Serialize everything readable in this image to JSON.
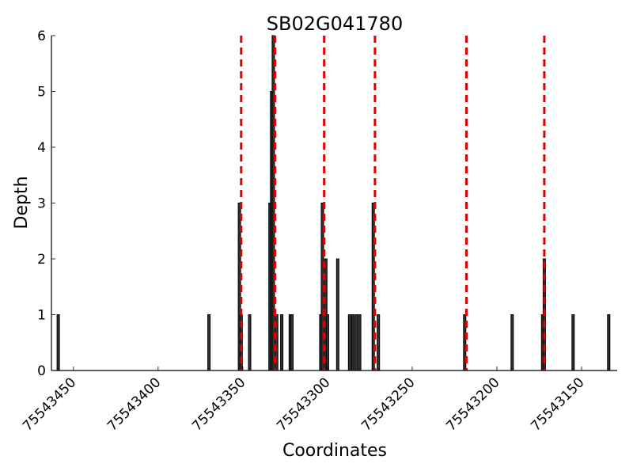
{
  "chart_data": {
    "type": "bar",
    "title": "SB02G041780",
    "xlabel": "Coordinates",
    "ylabel": "Depth",
    "xlim": [
      75543463,
      75543129
    ],
    "ylim": [
      0,
      6
    ],
    "x_axis_reversed": true,
    "xticks": [
      75543450,
      75543400,
      75543350,
      75543300,
      75543250,
      75543200,
      75543150
    ],
    "yticks": [
      0,
      1,
      2,
      3,
      4,
      5,
      6
    ],
    "bars": [
      {
        "x": 75543459,
        "depth": 1
      },
      {
        "x": 75543370,
        "depth": 1
      },
      {
        "x": 75543352,
        "depth": 3
      },
      {
        "x": 75543351,
        "depth": 1
      },
      {
        "x": 75543346,
        "depth": 1
      },
      {
        "x": 75543334,
        "depth": 3
      },
      {
        "x": 75543333,
        "depth": 5
      },
      {
        "x": 75543332,
        "depth": 6
      },
      {
        "x": 75543330,
        "depth": 1
      },
      {
        "x": 75543327,
        "depth": 1
      },
      {
        "x": 75543322,
        "depth": 1
      },
      {
        "x": 75543321,
        "depth": 1
      },
      {
        "x": 75543304,
        "depth": 1
      },
      {
        "x": 75543303,
        "depth": 3
      },
      {
        "x": 75543301,
        "depth": 2
      },
      {
        "x": 75543300,
        "depth": 1
      },
      {
        "x": 75543294,
        "depth": 2
      },
      {
        "x": 75543287,
        "depth": 1
      },
      {
        "x": 75543285,
        "depth": 1
      },
      {
        "x": 75543283,
        "depth": 1
      },
      {
        "x": 75543281,
        "depth": 1
      },
      {
        "x": 75543273,
        "depth": 3
      },
      {
        "x": 75543270,
        "depth": 1
      },
      {
        "x": 75543219,
        "depth": 1
      },
      {
        "x": 75543191,
        "depth": 1
      },
      {
        "x": 75543173,
        "depth": 1
      },
      {
        "x": 75543172,
        "depth": 2
      },
      {
        "x": 75543155,
        "depth": 1
      },
      {
        "x": 75543134,
        "depth": 1
      }
    ],
    "markers": [
      75543351,
      75543331,
      75543302,
      75543272,
      75543218,
      75543172
    ],
    "marker_color": "#e00000",
    "bar_color": "#333333"
  }
}
